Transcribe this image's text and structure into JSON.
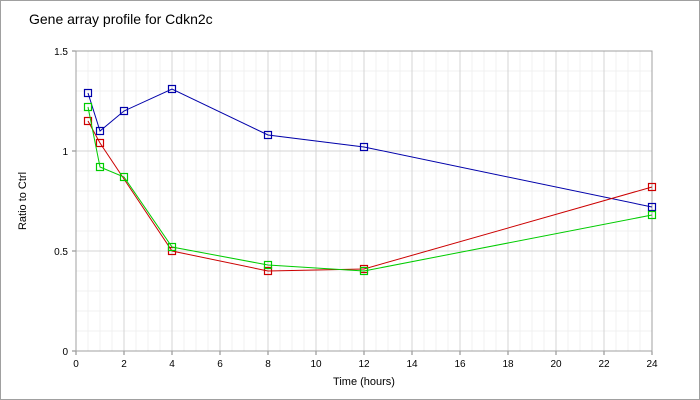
{
  "chart_data": {
    "type": "line",
    "title": "Gene array profile for Cdkn2c",
    "xlabel": "Time (hours)",
    "ylabel": "Ratio to Ctrl",
    "xlim": [
      0,
      24
    ],
    "ylim": [
      0,
      1.5
    ],
    "x_ticks": [
      "0",
      "2",
      "4",
      "6",
      "8",
      "10",
      "12",
      "14",
      "16",
      "18",
      "20",
      "22",
      "24"
    ],
    "y_ticks": [
      "0",
      "0.5",
      "1",
      "1.5"
    ],
    "grid": true,
    "legend": "none",
    "marker": "square",
    "series": [
      {
        "color": "#0000aa",
        "x": [
          0.5,
          1,
          2,
          4,
          8,
          12,
          24
        ],
        "y": [
          1.29,
          1.1,
          1.2,
          1.31,
          1.08,
          1.02,
          0.72
        ]
      },
      {
        "color": "#cc0000",
        "x": [
          0.5,
          1,
          4,
          8,
          12,
          24
        ],
        "y": [
          1.15,
          1.04,
          0.5,
          0.4,
          0.41,
          0.82
        ]
      },
      {
        "color": "#00cc00",
        "x": [
          0.5,
          1,
          2,
          4,
          8,
          12,
          24
        ],
        "y": [
          1.22,
          0.92,
          0.87,
          0.52,
          0.43,
          0.4,
          0.68
        ]
      }
    ]
  }
}
